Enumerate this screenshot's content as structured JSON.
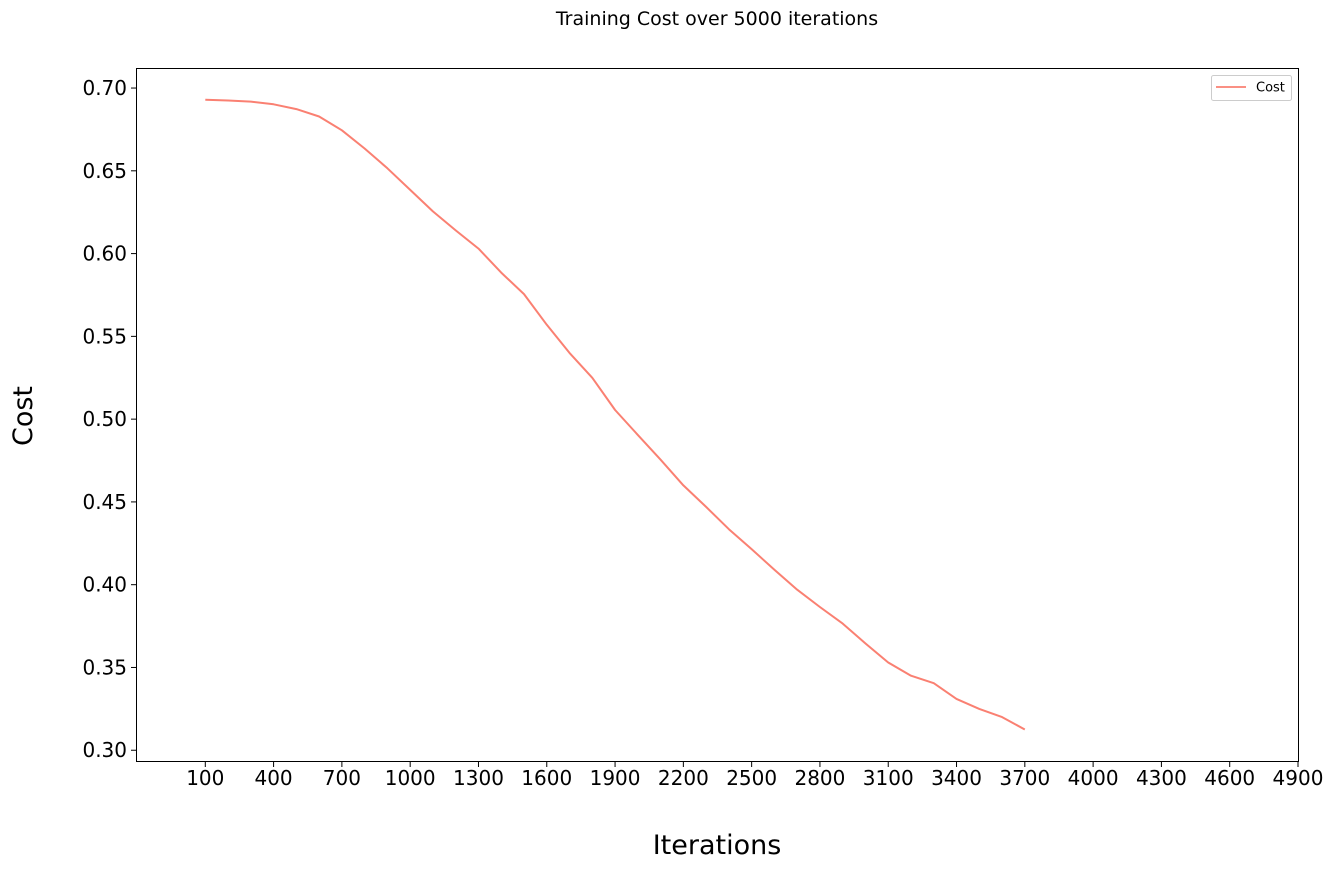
{
  "chart_data": {
    "type": "line",
    "title": "Training Cost over 5000 iterations",
    "xlabel": "Iterations",
    "ylabel": "Cost",
    "xlim": [
      -200,
      4900
    ],
    "ylim": [
      0.2935,
      0.7115
    ],
    "x_ticks": [
      100,
      400,
      700,
      1000,
      1300,
      1600,
      1900,
      2200,
      2500,
      2800,
      3100,
      3400,
      3700,
      4000,
      4300,
      4600,
      4900
    ],
    "y_ticks": [
      0.3,
      0.35,
      0.4,
      0.45,
      0.5,
      0.55,
      0.6,
      0.65,
      0.7
    ],
    "y_tick_labels": [
      "0.30",
      "0.35",
      "0.40",
      "0.45",
      "0.50",
      "0.55",
      "0.60",
      "0.65",
      "0.70"
    ],
    "grid": false,
    "legend_position": "top-right",
    "series": [
      {
        "name": "Cost",
        "color": "#fa8072",
        "x": [
          100,
          200,
          300,
          400,
          500,
          600,
          700,
          800,
          900,
          1000,
          1100,
          1200,
          1300,
          1400,
          1500,
          1600,
          1700,
          1800,
          1900,
          2000,
          2100,
          2200,
          2300,
          2400,
          2500,
          2600,
          2700,
          2800,
          2900,
          3000,
          3100,
          3200,
          3300,
          3400,
          3500,
          3600,
          3700
        ],
        "values": [
          0.6929,
          0.6925,
          0.6918,
          0.6902,
          0.6873,
          0.6828,
          0.6745,
          0.6635,
          0.6515,
          0.6385,
          0.6255,
          0.614,
          0.603,
          0.5885,
          0.5755,
          0.557,
          0.54,
          0.525,
          0.5055,
          0.4905,
          0.4755,
          0.46,
          0.447,
          0.4335,
          0.4215,
          0.409,
          0.397,
          0.3865,
          0.3765,
          0.3645,
          0.353,
          0.345,
          0.3405,
          0.331,
          0.325,
          0.32,
          0.3125
        ]
      }
    ]
  }
}
